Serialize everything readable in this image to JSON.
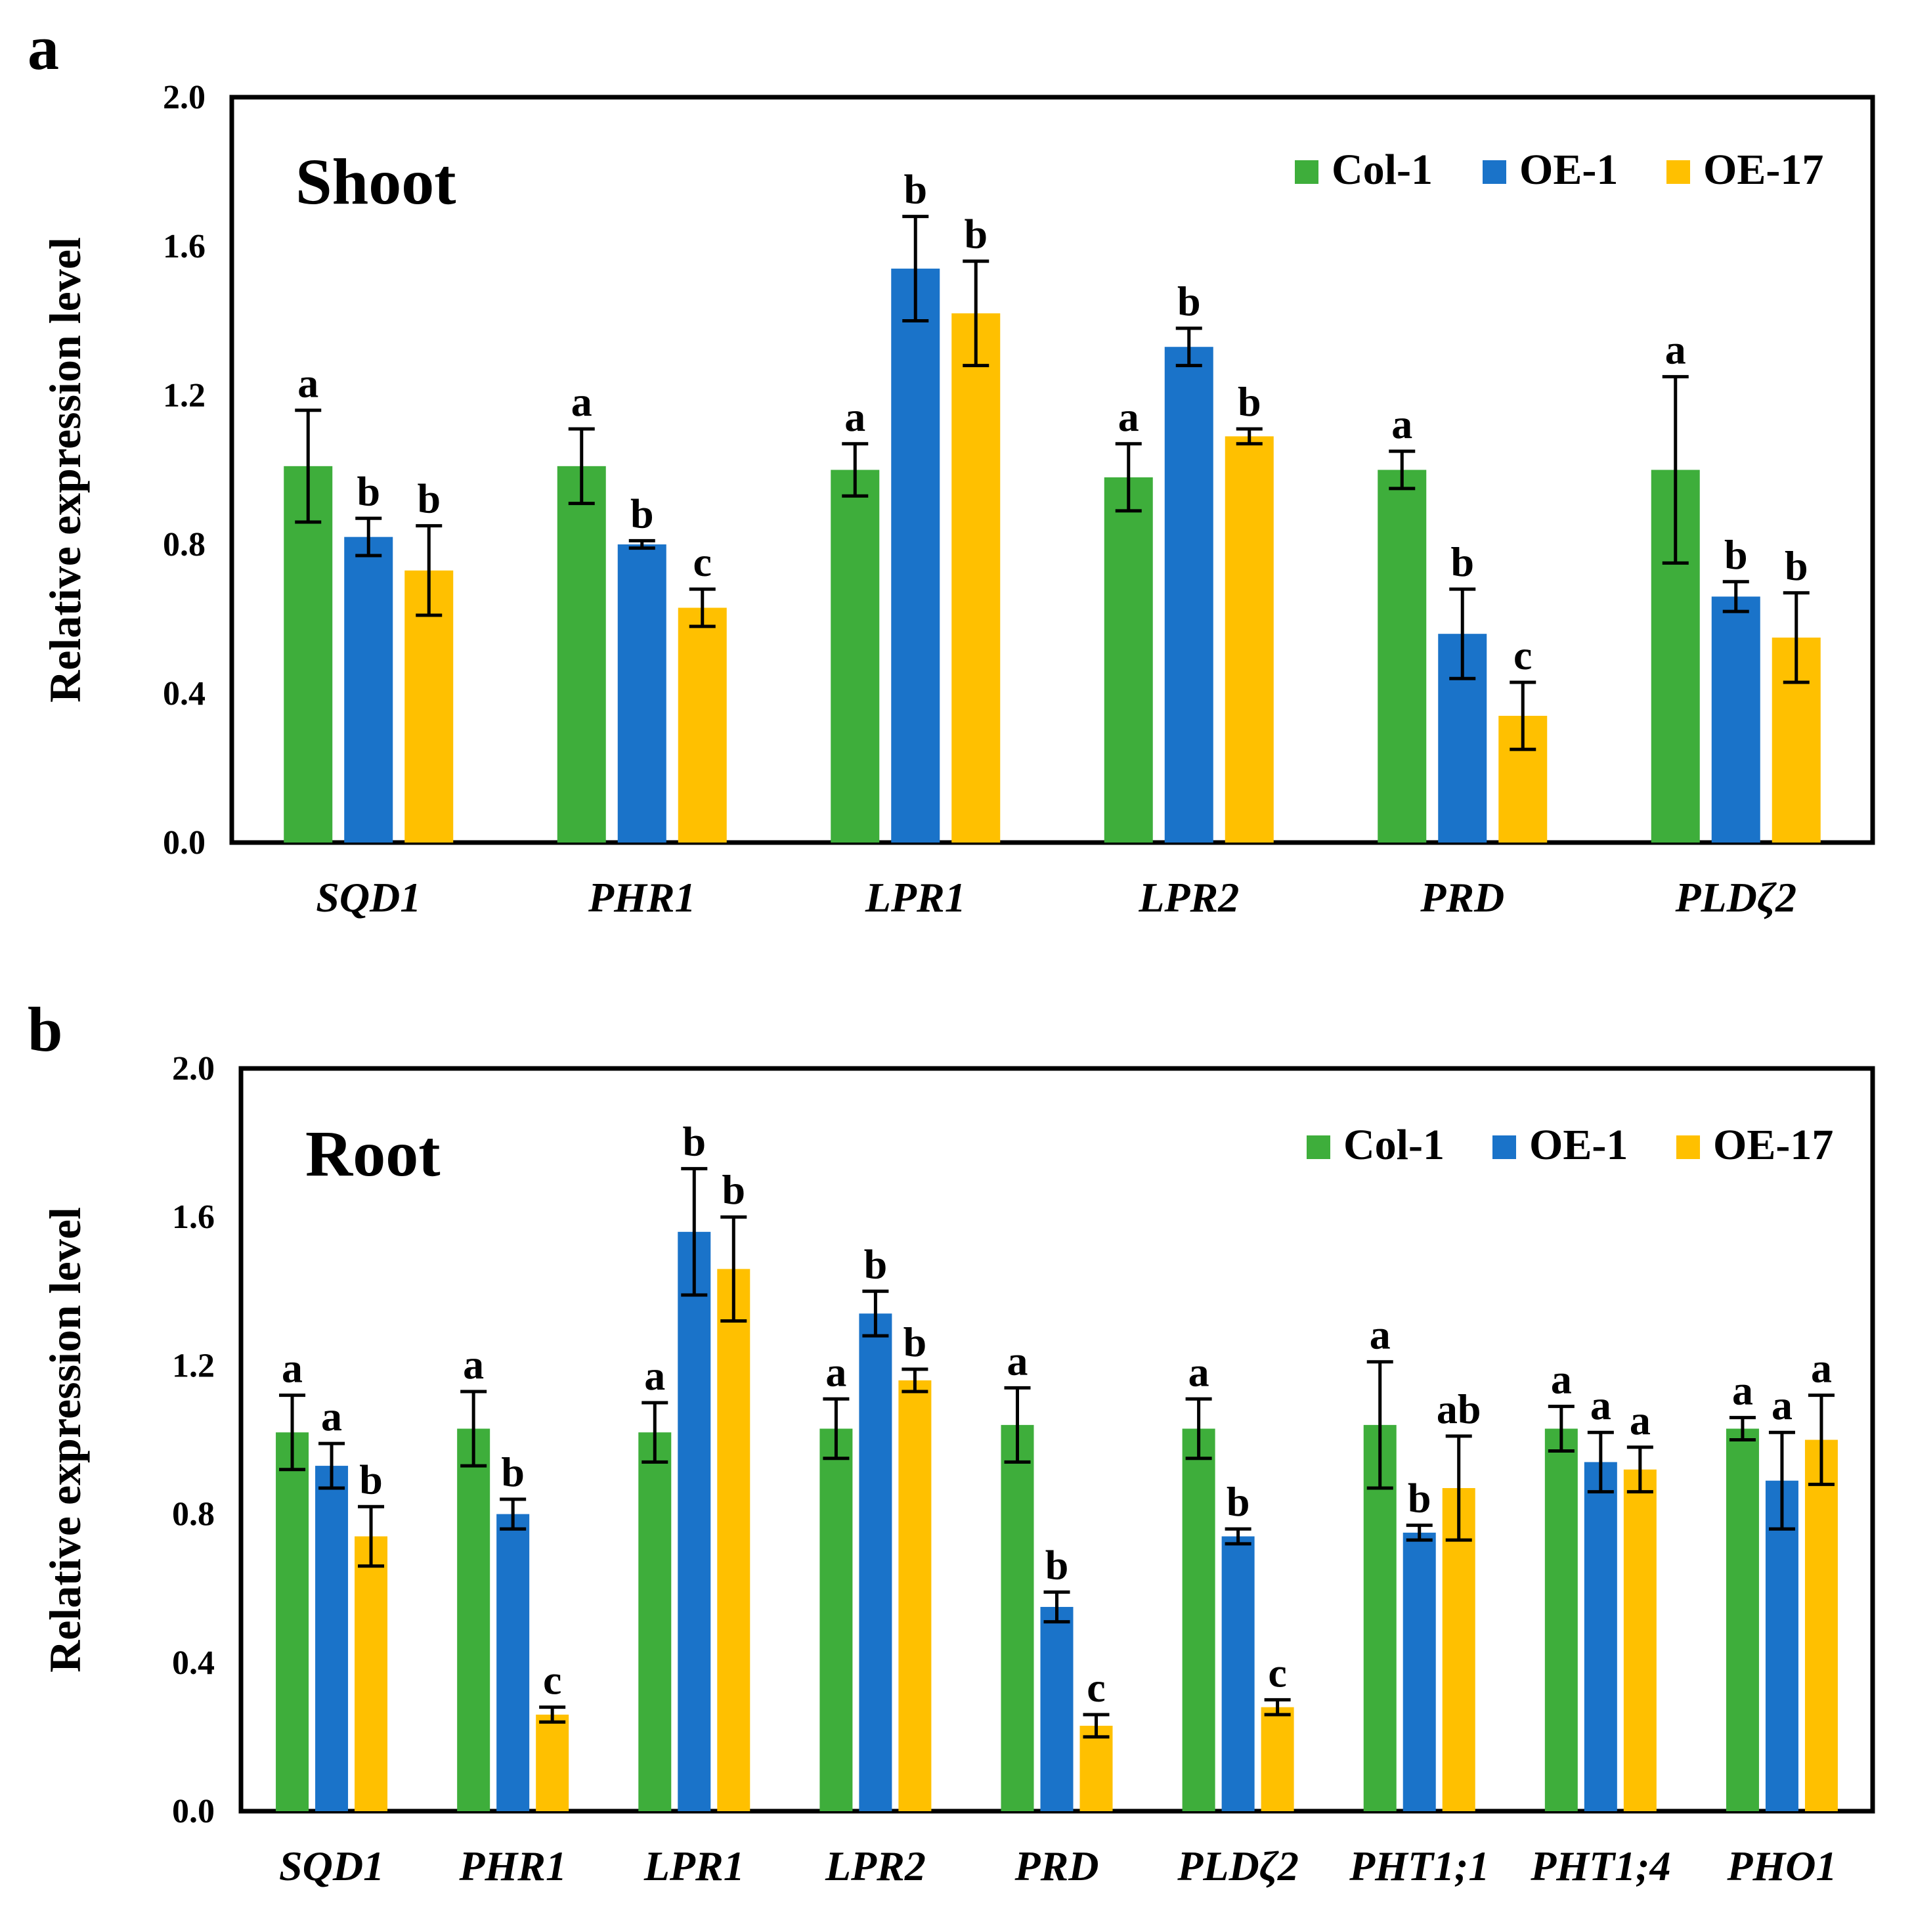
{
  "colors": {
    "Col-1": "#3EAE3B",
    "OE-1": "#1A73C9",
    "OE-17": "#FFC000",
    "axis": "#000000"
  },
  "chart_data": [
    {
      "panel_label": "a",
      "type": "bar",
      "title": "Shoot",
      "ylabel": "Relative expression level",
      "xlabel": "",
      "ylim": [
        0,
        2.0
      ],
      "yticks": [
        "0.0",
        "0.4",
        "0.8",
        "1.2",
        "1.6",
        "2.0"
      ],
      "ytick_values": [
        0,
        0.4,
        0.8,
        1.2,
        1.6,
        2.0
      ],
      "grid": false,
      "legend_position": "top-right",
      "categories": [
        "SQD1",
        "PHR1",
        "LPR1",
        "LPR2",
        "PRD",
        "PLDζ2"
      ],
      "series": [
        {
          "name": "Col-1",
          "values": [
            1.01,
            1.01,
            1.0,
            0.98,
            1.0,
            1.0
          ],
          "errors": [
            0.15,
            0.1,
            0.07,
            0.09,
            0.05,
            0.25
          ],
          "labels": [
            "a",
            "a",
            "a",
            "a",
            "a",
            "a"
          ]
        },
        {
          "name": "OE-1",
          "values": [
            0.82,
            0.8,
            1.54,
            1.33,
            0.56,
            0.66
          ],
          "errors": [
            0.05,
            0.01,
            0.14,
            0.05,
            0.12,
            0.04
          ],
          "labels": [
            "b",
            "b",
            "b",
            "b",
            "b",
            "b"
          ]
        },
        {
          "name": "OE-17",
          "values": [
            0.73,
            0.63,
            1.42,
            1.09,
            0.34,
            0.55
          ],
          "errors": [
            0.12,
            0.05,
            0.14,
            0.02,
            0.09,
            0.12
          ],
          "labels": [
            "b",
            "c",
            "b",
            "b",
            "c",
            "b"
          ]
        }
      ]
    },
    {
      "panel_label": "b",
      "type": "bar",
      "title": "Root",
      "ylabel": "Relative expression level",
      "xlabel": "",
      "ylim": [
        0,
        2.0
      ],
      "yticks": [
        "0.0",
        "0.4",
        "0.8",
        "1.2",
        "1.6",
        "2.0"
      ],
      "ytick_values": [
        0,
        0.4,
        0.8,
        1.2,
        1.6,
        2.0
      ],
      "grid": false,
      "legend_position": "top-right",
      "categories": [
        "SQD1",
        "PHR1",
        "LPR1",
        "LPR2",
        "PRD",
        "PLDζ2",
        "PHT1;1",
        "PHT1;4",
        "PHO1"
      ],
      "series": [
        {
          "name": "Col-1",
          "values": [
            1.02,
            1.03,
            1.02,
            1.03,
            1.04,
            1.03,
            1.04,
            1.03,
            1.03
          ],
          "errors": [
            0.1,
            0.1,
            0.08,
            0.08,
            0.1,
            0.08,
            0.17,
            0.06,
            0.03
          ],
          "labels": [
            "a",
            "a",
            "a",
            "a",
            "a",
            "a",
            "a",
            "a",
            "a"
          ]
        },
        {
          "name": "OE-1",
          "values": [
            0.93,
            0.8,
            1.56,
            1.34,
            0.55,
            0.74,
            0.75,
            0.94,
            0.89
          ],
          "errors": [
            0.06,
            0.04,
            0.17,
            0.06,
            0.04,
            0.02,
            0.02,
            0.08,
            0.13
          ],
          "labels": [
            "a",
            "b",
            "b",
            "b",
            "b",
            "b",
            "b",
            "a",
            "a"
          ]
        },
        {
          "name": "OE-17",
          "values": [
            0.74,
            0.26,
            1.46,
            1.16,
            0.23,
            0.28,
            0.87,
            0.92,
            1.0
          ],
          "errors": [
            0.08,
            0.02,
            0.14,
            0.03,
            0.03,
            0.02,
            0.14,
            0.06,
            0.12
          ],
          "labels": [
            "b",
            "c",
            "b",
            "b",
            "c",
            "c",
            "ab",
            "a",
            "a"
          ]
        }
      ]
    }
  ]
}
